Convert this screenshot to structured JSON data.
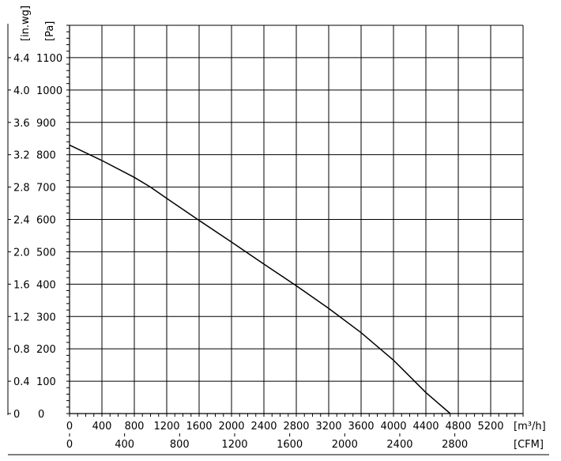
{
  "chart_data": {
    "type": "line",
    "y_unit_outer": "[in.wg]",
    "y_unit_inner": "[Pa]",
    "x_unit_primary": "[m³/h]",
    "x_unit_secondary": "[CFM]",
    "x_primary_ticks": [
      "0",
      "400",
      "800",
      "1200",
      "1600",
      "2000",
      "2400",
      "2800",
      "3200",
      "3600",
      "4000",
      "4400",
      "4800",
      "5200"
    ],
    "x_secondary_ticks": [
      "0",
      "400",
      "800",
      "1200",
      "1600",
      "2000",
      "2400",
      "2800"
    ],
    "x_secondary_values": [
      0,
      400,
      800,
      1200,
      1600,
      2000,
      2400,
      2800
    ],
    "y_ticks": [
      {
        "inwg": "0",
        "pa": "0"
      },
      {
        "inwg": "0.4",
        "pa": "100"
      },
      {
        "inwg": "0.8",
        "pa": "200"
      },
      {
        "inwg": "1.2",
        "pa": "300"
      },
      {
        "inwg": "1.6",
        "pa": "400"
      },
      {
        "inwg": "2.0",
        "pa": "500"
      },
      {
        "inwg": "2.4",
        "pa": "600"
      },
      {
        "inwg": "2.8",
        "pa": "700"
      },
      {
        "inwg": "3.2",
        "pa": "800"
      },
      {
        "inwg": "3.6",
        "pa": "900"
      },
      {
        "inwg": "4.0",
        "pa": "1000"
      },
      {
        "inwg": "4.4",
        "pa": "1100"
      }
    ],
    "xlim": [
      0,
      5600
    ],
    "ylim": [
      0,
      1200
    ],
    "grid": true,
    "series": [
      {
        "color": "#000000",
        "x": [
          0,
          400,
          800,
          1000,
          1200,
          1600,
          2000,
          2400,
          2800,
          3200,
          3600,
          4000,
          4400,
          4700
        ],
        "y": [
          830,
          782,
          730,
          700,
          665,
          597,
          530,
          462,
          395,
          325,
          250,
          165,
          65,
          0
        ]
      }
    ]
  }
}
